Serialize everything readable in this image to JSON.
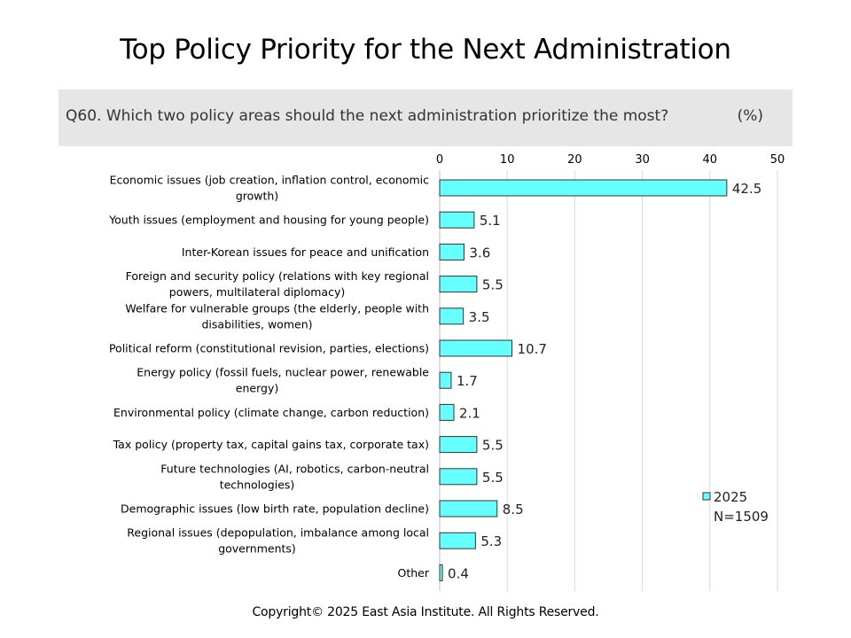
{
  "title": "Top Policy Priority for the Next Administration",
  "question": {
    "text": "Q60. Which two policy areas should the next administration prioritize the most?",
    "unit": "(%)"
  },
  "footer": "Copyright© 2025 East Asia Institute. All Rights Reserved.",
  "colors": {
    "bar_fill": "#66ffff",
    "bar_stroke": "#333333",
    "grid": "#d9d9d9",
    "band": "#e6e6e6"
  },
  "chart_data": {
    "type": "bar",
    "orientation": "horizontal",
    "categories": [
      [
        "Economic issues (job creation, inflation control, economic",
        "growth)"
      ],
      [
        "Youth issues (employment and housing for young people)"
      ],
      [
        "Inter-Korean issues for peace and unification"
      ],
      [
        "Foreign and security policy (relations with key regional",
        "powers, multilateral diplomacy)"
      ],
      [
        "Welfare for vulnerable groups (the elderly, people with",
        "disabilities, women)"
      ],
      [
        "Political reform (constitutional revision, parties, elections)"
      ],
      [
        "Energy policy (fossil fuels, nuclear power, renewable",
        "energy)"
      ],
      [
        "Environmental policy (climate change, carbon reduction)"
      ],
      [
        "Tax policy (property tax, capital gains tax, corporate tax)"
      ],
      [
        "Future technologies (AI, robotics, carbon-neutral",
        "technologies)"
      ],
      [
        "Demographic issues (low birth rate, population decline)"
      ],
      [
        "Regional issues (depopulation, imbalance among local",
        "governments)"
      ],
      [
        "Other"
      ]
    ],
    "series": [
      {
        "name": "2025",
        "values": [
          42.5,
          5.1,
          3.6,
          5.5,
          3.5,
          10.7,
          1.7,
          2.1,
          5.5,
          5.5,
          8.5,
          5.3,
          0.4
        ]
      }
    ],
    "xlim": [
      0,
      50
    ],
    "xticks": [
      0,
      10,
      20,
      30,
      40,
      50
    ],
    "axis_position": "top",
    "grid": true,
    "legend": {
      "position": "bottom-right",
      "label": "2025",
      "note": "N=1509"
    }
  }
}
